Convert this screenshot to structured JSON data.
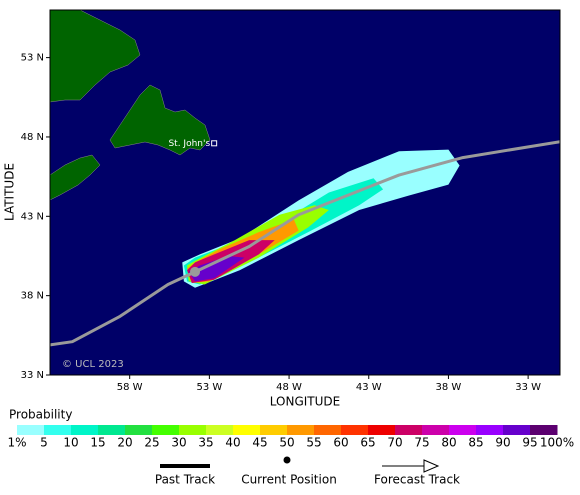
{
  "map": {
    "xlabel": "LONGITUDE",
    "ylabel": "LATITUDE",
    "xlim": [
      -63,
      -31
    ],
    "ylim": [
      33,
      56
    ],
    "xticks": [
      {
        "value": -58,
        "label": "58 W"
      },
      {
        "value": -53,
        "label": "53 W"
      },
      {
        "value": -48,
        "label": "48 W"
      },
      {
        "value": -43,
        "label": "43 W"
      },
      {
        "value": -38,
        "label": "38 W"
      },
      {
        "value": -33,
        "label": "33 W"
      }
    ],
    "yticks": [
      {
        "value": 33,
        "label": "33 N"
      },
      {
        "value": 38,
        "label": "38 N"
      },
      {
        "value": 43,
        "label": "43 N"
      },
      {
        "value": 48,
        "label": "48 N"
      },
      {
        "value": 53,
        "label": "53 N"
      }
    ],
    "copyright": "© UCL 2023",
    "cities": [
      {
        "name": "St. John's",
        "lon": -52.7,
        "lat": 47.6
      }
    ],
    "track_color": "#9a9a9a",
    "past_track": {
      "lon": [
        -63,
        -61.6,
        -58.6,
        -55.6,
        -53.9
      ],
      "lat": [
        34.9,
        35.1,
        36.7,
        38.7,
        39.5
      ]
    },
    "current_position": {
      "lon": -53.9,
      "lat": 39.5
    },
    "forecast_track": {
      "lon": [
        -53.9,
        -50.5,
        -47.4,
        -41.1,
        -37.1,
        -31
      ],
      "lat": [
        39.5,
        41.1,
        43.1,
        45.6,
        46.7,
        47.7
      ]
    },
    "probability_contours": [
      {
        "level": 1,
        "points": [
          [
            -54.7,
            40.1
          ],
          [
            -54.6,
            38.9
          ],
          [
            -53.9,
            38.5
          ],
          [
            -51.1,
            39.6
          ],
          [
            -47.4,
            41.5
          ],
          [
            -43.6,
            43.4
          ],
          [
            -40.5,
            44.3
          ],
          [
            -38.0,
            45.0
          ],
          [
            -37.3,
            46.2
          ],
          [
            -38.0,
            47.2
          ],
          [
            -41.1,
            47.1
          ],
          [
            -44.3,
            45.8
          ],
          [
            -47.4,
            44.0
          ],
          [
            -51.1,
            41.6
          ],
          [
            -53.6,
            40.6
          ]
        ]
      },
      {
        "level": 10,
        "points": [
          [
            -54.6,
            39.9
          ],
          [
            -54.4,
            38.9
          ],
          [
            -53.6,
            38.7
          ],
          [
            -50.5,
            40.1
          ],
          [
            -46.8,
            42.0
          ],
          [
            -43.6,
            43.7
          ],
          [
            -42.1,
            44.7
          ],
          [
            -42.7,
            45.4
          ],
          [
            -45.5,
            44.5
          ],
          [
            -48.6,
            42.6
          ],
          [
            -51.8,
            41.2
          ],
          [
            -53.9,
            40.4
          ]
        ]
      },
      {
        "level": 30,
        "points": [
          [
            -54.4,
            39.9
          ],
          [
            -54.3,
            38.9
          ],
          [
            -53.3,
            38.7
          ],
          [
            -49.9,
            40.4
          ],
          [
            -46.8,
            42.3
          ],
          [
            -45.5,
            43.4
          ],
          [
            -46.4,
            43.7
          ],
          [
            -48.6,
            43.1
          ],
          [
            -51.4,
            41.5
          ],
          [
            -53.9,
            40.2
          ]
        ]
      },
      {
        "level": 50,
        "points": [
          [
            -54.4,
            39.7
          ],
          [
            -54.1,
            38.8
          ],
          [
            -53.0,
            38.9
          ],
          [
            -49.9,
            40.6
          ],
          [
            -47.4,
            42.1
          ],
          [
            -47.7,
            42.8
          ],
          [
            -49.9,
            42.0
          ],
          [
            -52.4,
            40.9
          ],
          [
            -53.9,
            40.1
          ]
        ]
      },
      {
        "level": 70,
        "points": [
          [
            -54.4,
            39.6
          ],
          [
            -54.1,
            38.8
          ],
          [
            -52.7,
            39.0
          ],
          [
            -49.9,
            40.6
          ],
          [
            -48.9,
            41.5
          ],
          [
            -50.5,
            41.5
          ],
          [
            -52.7,
            40.6
          ],
          [
            -53.9,
            40.1
          ]
        ]
      },
      {
        "level": 90,
        "points": [
          [
            -54.3,
            39.5
          ],
          [
            -53.9,
            38.9
          ],
          [
            -52.7,
            39.1
          ],
          [
            -50.8,
            40.4
          ],
          [
            -51.8,
            40.5
          ],
          [
            -53.6,
            39.9
          ]
        ]
      }
    ]
  },
  "legend": {
    "title": "Probability",
    "levels": [
      {
        "value": 1,
        "label": "1%"
      },
      5,
      10,
      15,
      20,
      25,
      30,
      35,
      40,
      45,
      50,
      55,
      60,
      65,
      70,
      75,
      80,
      85,
      90,
      95,
      {
        "value": 100,
        "label": "100%"
      }
    ],
    "colors": [
      "#99ffff",
      "#33ffee",
      "#00f5c8",
      "#00e890",
      "#22e040",
      "#44ff00",
      "#99ff00",
      "#ccff22",
      "#ffff00",
      "#ffcc00",
      "#ff9900",
      "#ff6600",
      "#ff3300",
      "#ee0000",
      "#cc0066",
      "#cc00aa",
      "#cc00ee",
      "#9900ff",
      "#6600cc",
      "#5c0070"
    ],
    "past_track": "Past Track",
    "current_position": "Current Position",
    "forecast_track": "Forecast Track"
  }
}
